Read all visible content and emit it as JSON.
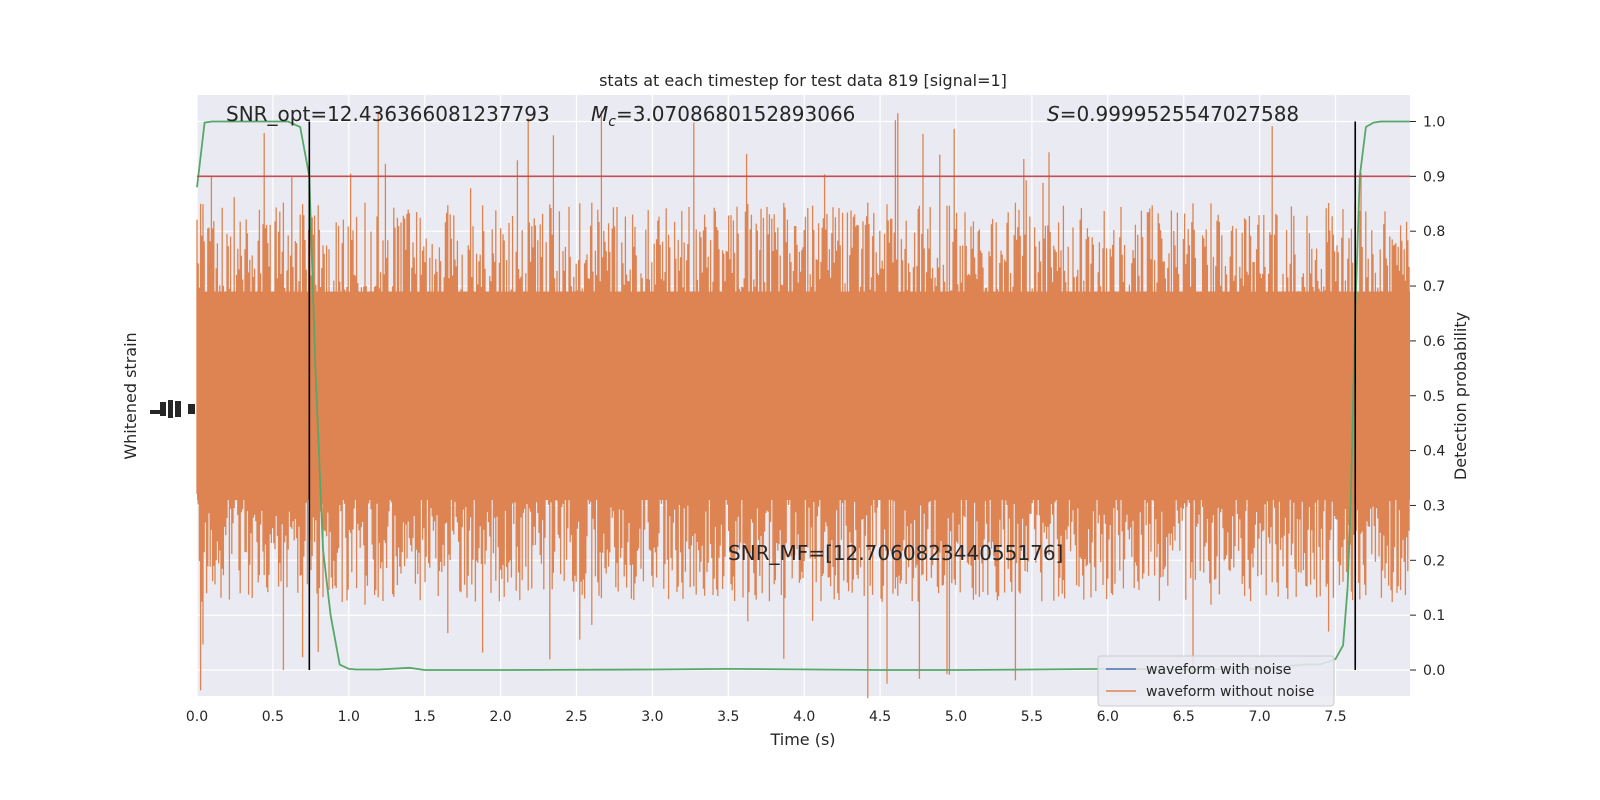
{
  "chart_data": {
    "type": "line",
    "title": "stats at each timestep for test data 819 [signal=1]",
    "xlabel": "Time (s)",
    "ylabel_left": "Whitened strain",
    "ylabel_right": "Detection probability",
    "xlim": [
      0,
      8
    ],
    "ylim_right": [
      -0.05,
      1.05
    ],
    "x_ticks": [
      "0.0",
      "0.5",
      "1.0",
      "1.5",
      "2.0",
      "2.5",
      "3.0",
      "3.5",
      "4.0",
      "4.5",
      "5.0",
      "5.5",
      "6.0",
      "6.5",
      "7.0",
      "7.5"
    ],
    "x_tick_values": [
      0,
      0.5,
      1,
      1.5,
      2,
      2.5,
      3,
      3.5,
      4,
      4.5,
      5,
      5.5,
      6,
      6.5,
      7,
      7.5
    ],
    "y_right_ticks": [
      "0.0",
      "0.1",
      "0.2",
      "0.3",
      "0.4",
      "0.5",
      "0.6",
      "0.7",
      "0.8",
      "0.9",
      "1.0"
    ],
    "y_right_tick_values": [
      0,
      0.1,
      0.2,
      0.3,
      0.4,
      0.5,
      0.6,
      0.7,
      0.8,
      0.9,
      1.0
    ],
    "threshold": 0.9,
    "vlines": [
      0.74,
      7.63
    ],
    "grid": true,
    "legend_position": "lower-right",
    "annotations": {
      "snr_opt": "SNR_opt=12.436366081237793",
      "mc_symbol": "M",
      "mc_sub": "c",
      "mc_value": "=3.0708680152893066",
      "s_symbol": "S",
      "s_value": "=0.9999525547027588",
      "snr_mf": "SNR_MF=[12.706082344055176]"
    },
    "series": [
      {
        "name": "waveform with noise",
        "color": "#4c72b0"
      },
      {
        "name": "waveform without noise",
        "color": "#dd8452"
      },
      {
        "color": "#55a868",
        "x": [
          0.0,
          0.05,
          0.1,
          0.2,
          0.3,
          0.4,
          0.5,
          0.6,
          0.68,
          0.74,
          0.78,
          0.83,
          0.88,
          0.94,
          1.0,
          1.05,
          1.2,
          1.4,
          1.5,
          2.0,
          3.0,
          3.5,
          4.5,
          5.0,
          5.5,
          6.0,
          6.5,
          7.0,
          7.3,
          7.4,
          7.45,
          7.5,
          7.55,
          7.58,
          7.6,
          7.63,
          7.66,
          7.7,
          7.75,
          7.8,
          7.9,
          7.99
        ],
        "y": [
          0.88,
          0.998,
          1.0,
          1.0,
          1.0,
          1.0,
          1.0,
          1.0,
          0.99,
          0.9,
          0.55,
          0.22,
          0.1,
          0.01,
          0.002,
          0.001,
          0.001,
          0.004,
          0.0,
          0.0,
          0.001,
          0.002,
          0.0,
          0.0,
          0.001,
          0.002,
          0.001,
          0.002,
          0.01,
          0.01,
          0.015,
          0.02,
          0.045,
          0.15,
          0.3,
          0.65,
          0.9,
          0.99,
          0.998,
          1.0,
          1.0,
          1.0
        ]
      }
    ],
    "threshold_color": "#c44e52",
    "vline_color": "#000000",
    "plot_bg": "#eaeaf2"
  }
}
